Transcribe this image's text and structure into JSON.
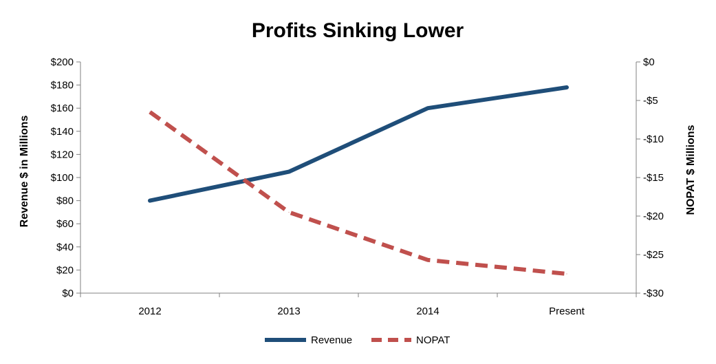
{
  "chart_data": {
    "type": "line",
    "title": "Profits Sinking Lower",
    "categories": [
      "2012",
      "2013",
      "2014",
      "Present"
    ],
    "y_left": {
      "label": "Revenue $ in Millions",
      "range": [
        0,
        200
      ],
      "ticks": [
        0,
        20,
        40,
        60,
        80,
        100,
        120,
        140,
        160,
        180,
        200
      ],
      "tick_labels": [
        "$0",
        "$20",
        "$40",
        "$60",
        "$80",
        "$100",
        "$120",
        "$140",
        "$160",
        "$180",
        "$200"
      ]
    },
    "y_right": {
      "label": "NOPAT $ Millions",
      "range": [
        -30,
        0
      ],
      "ticks": [
        0,
        -5,
        -10,
        -15,
        -20,
        -25,
        -30
      ],
      "tick_labels": [
        "$0",
        "-$5",
        "-$10",
        "-$15",
        "-$20",
        "-$25",
        "-$30"
      ]
    },
    "series": [
      {
        "name": "Revenue",
        "axis": "left",
        "values": [
          80,
          105,
          160,
          178
        ],
        "color": "#1f4e79",
        "style": "solid"
      },
      {
        "name": "NOPAT",
        "axis": "right",
        "values": [
          -6.5,
          -19.5,
          -25.7,
          -27.5
        ],
        "color": "#c0504d",
        "style": "dashed"
      }
    ],
    "grid": false,
    "legend": "bottom"
  }
}
